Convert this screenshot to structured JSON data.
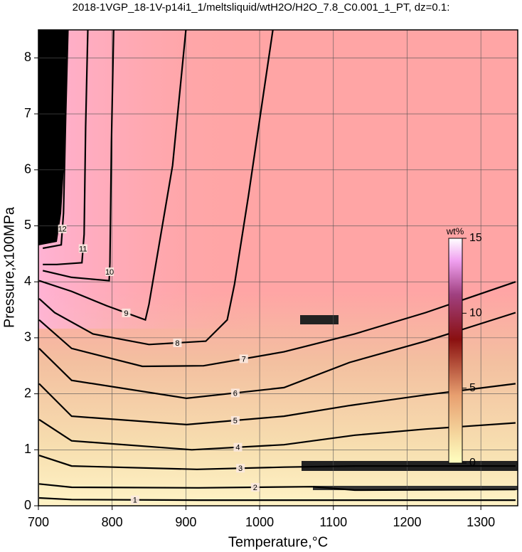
{
  "chart_data": {
    "type": "contour",
    "title": "2018-1VGP_18-1V-p14i1_1/meltsliquid/wtH2O/H2O_7.8_C0.001_1_PT, dz=0.1:",
    "x_label": "Temperature,°C",
    "y_label": "Pressure,x100MPa",
    "xlim": [
      700,
      1350
    ],
    "xticks": [
      700,
      800,
      900,
      1000,
      1100,
      1200,
      1300
    ],
    "ylim": [
      0,
      8.5
    ],
    "yticks": [
      0,
      1,
      2,
      3,
      4,
      5,
      6,
      7,
      8
    ],
    "grid": true,
    "contours": [
      {
        "level": 1,
        "x": [
          701,
          745,
          917,
          1100,
          1347
        ],
        "y": [
          0.14,
          0.11,
          0.1,
          0.1,
          0.1
        ]
      },
      {
        "level": 2,
        "x": [
          701,
          745,
          917,
          1071,
          1129,
          1347
        ],
        "y": [
          0.39,
          0.33,
          0.32,
          0.34,
          0.28,
          0.29
        ]
      },
      {
        "level": 3,
        "x": [
          701,
          745,
          915,
          1033,
          1129,
          1347
        ],
        "y": [
          0.9,
          0.71,
          0.65,
          0.69,
          0.71,
          0.71
        ]
      },
      {
        "level": 4,
        "x": [
          701,
          745,
          908,
          1033,
          1129,
          1225,
          1347
        ],
        "y": [
          1.54,
          1.16,
          1.0,
          1.09,
          1.26,
          1.37,
          1.48
        ]
      },
      {
        "level": 5,
        "x": [
          701,
          745,
          901,
          1033,
          1122,
          1225,
          1347
        ],
        "y": [
          2.18,
          1.6,
          1.45,
          1.6,
          1.79,
          1.98,
          2.18
        ]
      },
      {
        "level": 6,
        "x": [
          701,
          745,
          901,
          1033,
          1122,
          1225,
          1347
        ],
        "y": [
          2.81,
          2.24,
          1.92,
          2.11,
          2.56,
          2.94,
          3.45
        ]
      },
      {
        "level": 7,
        "x": [
          701,
          745,
          841,
          924,
          1033,
          1129,
          1225,
          1347
        ],
        "y": [
          3.32,
          2.81,
          2.49,
          2.5,
          2.75,
          3.07,
          3.45,
          4.0
        ]
      },
      {
        "level": 8,
        "x": [
          701,
          722,
          774,
          850,
          927,
          956,
          966,
          985,
          1018
        ],
        "y": [
          3.7,
          3.45,
          3.07,
          2.88,
          2.94,
          3.32,
          3.96,
          5.55,
          8.5
        ]
      },
      {
        "level": 9,
        "x": [
          701,
          745,
          793,
          845,
          850,
          882,
          900
        ],
        "y": [
          4.02,
          3.83,
          3.57,
          3.32,
          3.6,
          6.08,
          8.5
        ]
      },
      {
        "level": 10,
        "x": [
          706,
          745,
          796,
          797,
          799,
          802
        ],
        "y": [
          4.2,
          4.08,
          4.02,
          4.34,
          6.5,
          8.5
        ]
      },
      {
        "level": 11,
        "x": [
          706,
          725,
          759,
          762,
          764,
          767
        ],
        "y": [
          4.31,
          4.31,
          4.34,
          4.85,
          6.76,
          8.5
        ]
      },
      {
        "level": 12,
        "x": [
          706,
          731,
          734,
          737,
          740
        ],
        "y": [
          4.6,
          4.66,
          5.23,
          7.0,
          8.5
        ]
      }
    ],
    "colorbar": {
      "label": "wt%",
      "lim": [
        0,
        15
      ],
      "ticks": [
        0,
        5,
        10,
        15
      ]
    }
  }
}
